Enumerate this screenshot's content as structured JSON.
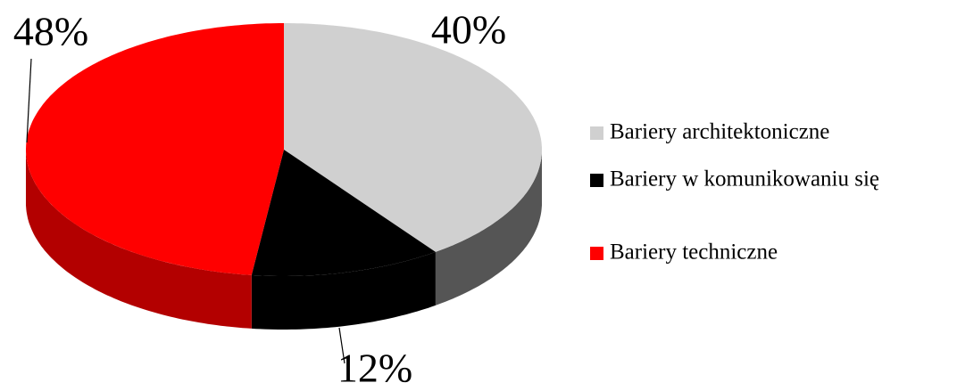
{
  "chart_data": {
    "type": "pie3d",
    "categories": [
      "Bariery architektoniczne",
      "Bariery w komunikowaniu się",
      "Bariery techniczne"
    ],
    "values": [
      40,
      12,
      48
    ],
    "value_labels": [
      "40%",
      "12%",
      "48%"
    ],
    "colors": [
      "#d0d0d0",
      "#000000",
      "#ff0000"
    ],
    "legend": "right"
  }
}
